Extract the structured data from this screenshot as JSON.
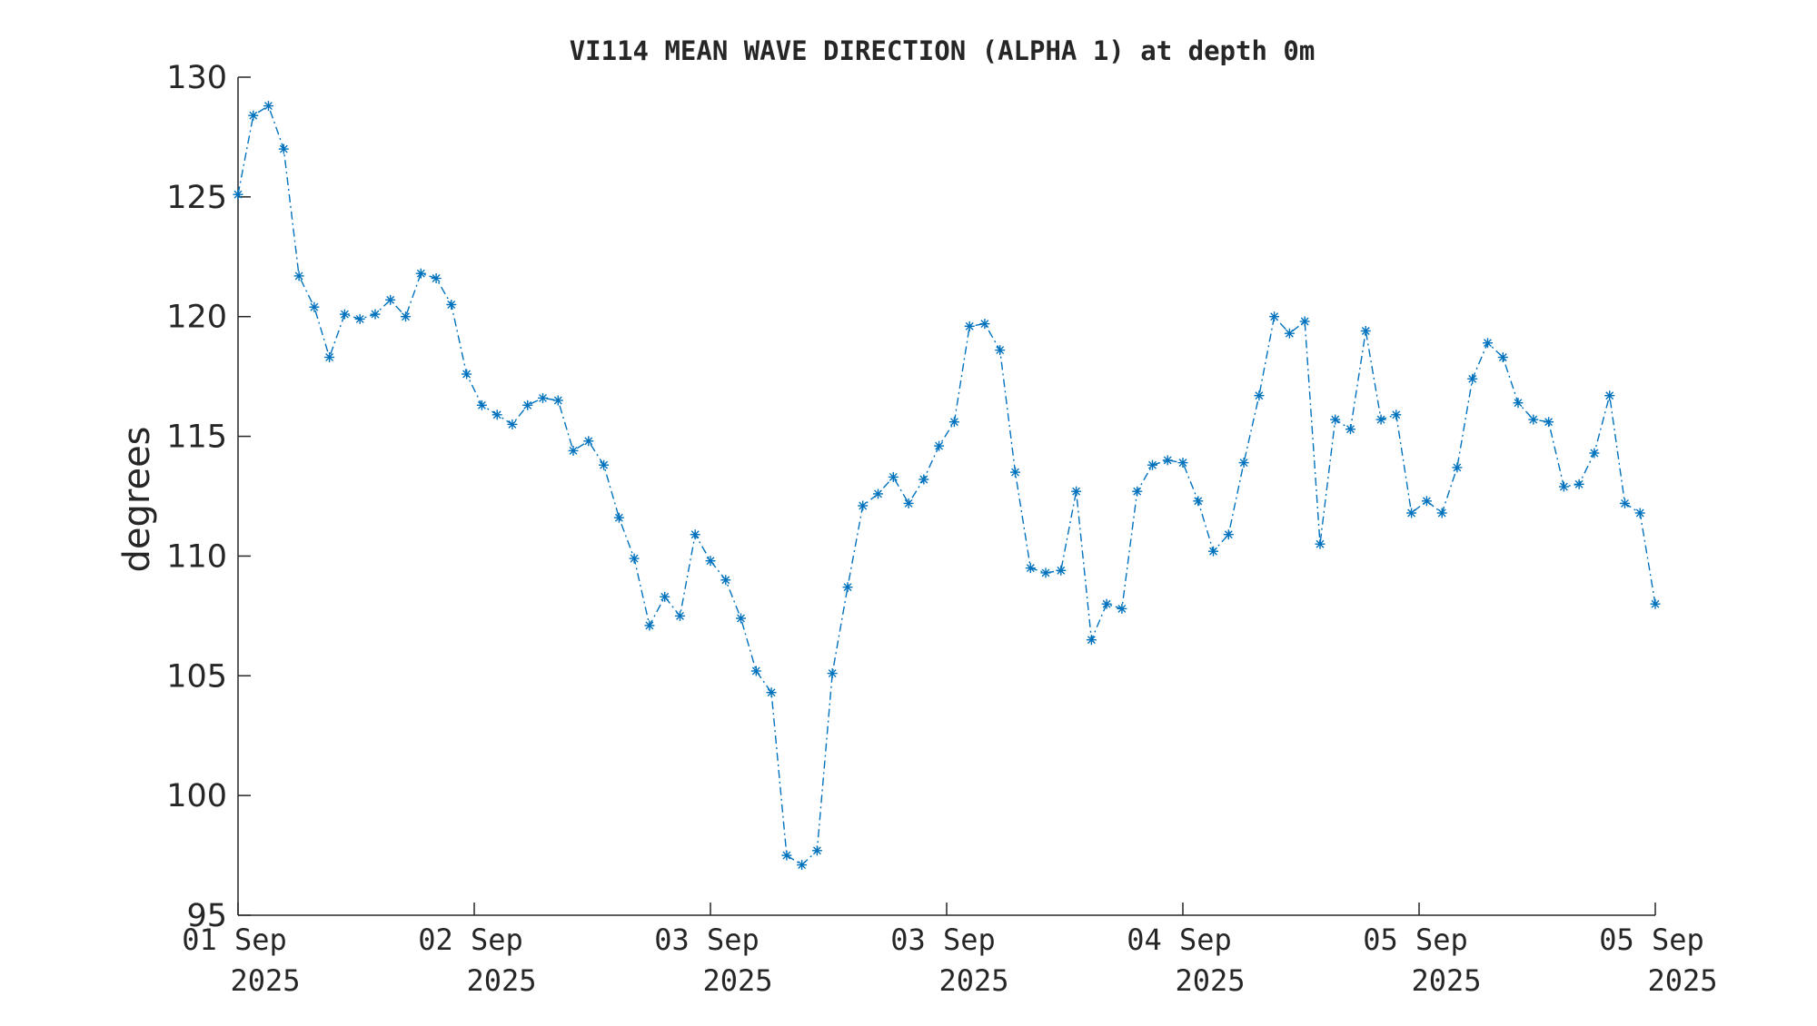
{
  "chart_data": {
    "type": "line",
    "title": "VI114 MEAN WAVE DIRECTION (ALPHA 1) at depth 0m",
    "xlabel": "",
    "ylabel": "degrees",
    "ylim": [
      95,
      130
    ],
    "yticks": [
      95,
      100,
      105,
      110,
      115,
      120,
      125,
      130
    ],
    "xticks": [
      {
        "line1": "01 Sep",
        "line2": "2025"
      },
      {
        "line1": "02 Sep",
        "line2": "2025"
      },
      {
        "line1": "03 Sep",
        "line2": "2025"
      },
      {
        "line1": "03 Sep",
        "line2": "2025"
      },
      {
        "line1": "04 Sep",
        "line2": "2025"
      },
      {
        "line1": "05 Sep",
        "line2": "2025"
      },
      {
        "line1": "05 Sep",
        "line2": "2025"
      }
    ],
    "grid": false,
    "legend": "none",
    "line_style": "dash-dot",
    "marker": "asterisk",
    "color": "#0072BD",
    "series": [
      {
        "values": [
          125.1,
          128.4,
          128.8,
          127.0,
          121.7,
          120.4,
          118.3,
          120.1,
          119.9,
          120.1,
          120.7,
          120.0,
          121.8,
          121.6,
          120.5,
          117.6,
          116.3,
          115.9,
          115.5,
          116.3,
          116.6,
          116.5,
          114.4,
          114.8,
          113.8,
          111.6,
          109.9,
          107.1,
          108.3,
          107.5,
          110.9,
          109.8,
          109.0,
          107.4,
          105.2,
          104.3,
          97.5,
          97.1,
          97.7,
          105.1,
          108.7,
          112.1,
          112.6,
          113.3,
          112.2,
          113.2,
          114.6,
          115.6,
          119.6,
          119.7,
          118.6,
          113.5,
          109.5,
          109.3,
          109.4,
          112.7,
          106.5,
          108.0,
          107.8,
          112.7,
          113.8,
          114.0,
          113.9,
          112.3,
          110.2,
          110.9,
          113.9,
          116.7,
          120.0,
          119.3,
          119.8,
          110.5,
          115.7,
          115.3,
          119.4,
          115.7,
          115.9,
          111.8,
          112.3,
          111.8,
          113.7,
          117.4,
          118.9,
          118.3,
          116.4,
          115.7,
          115.6,
          112.9,
          113.0,
          114.3,
          116.7,
          112.2,
          111.8,
          108.0
        ]
      }
    ]
  }
}
